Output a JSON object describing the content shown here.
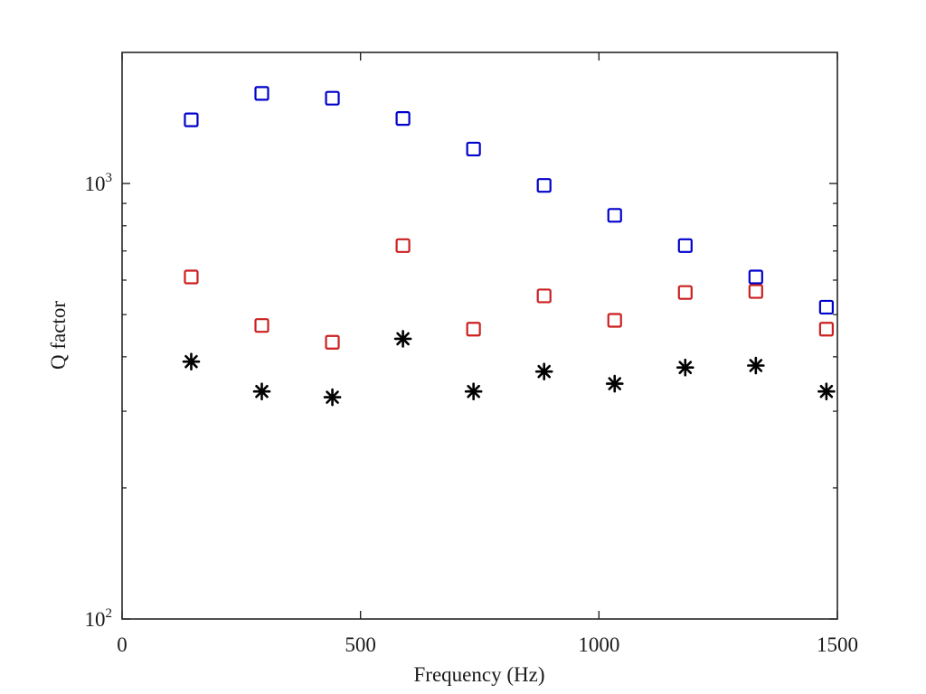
{
  "chart_data": {
    "type": "scatter",
    "title": "",
    "xlabel": "Frequency (Hz)",
    "ylabel": "Q factor",
    "xlim": [
      0,
      1500
    ],
    "ylim": [
      100,
      2000
    ],
    "yscale": "log",
    "grid": false,
    "legend": "none",
    "x_ticks": [
      {
        "value": 0,
        "label": "0"
      },
      {
        "value": 500,
        "label": "500"
      },
      {
        "value": 1000,
        "label": "1000"
      },
      {
        "value": 1500,
        "label": "1500"
      }
    ],
    "y_ticks": [
      {
        "value": 100,
        "base": "10",
        "exp": "2"
      },
      {
        "value": 1000,
        "base": "10",
        "exp": "3"
      }
    ],
    "x": [
      145,
      293,
      441,
      589,
      737,
      885,
      1033,
      1181,
      1329,
      1477
    ],
    "series": [
      {
        "marker": "square",
        "color": "#0000cc",
        "values": [
          1400,
          1610,
          1570,
          1410,
          1200,
          990,
          845,
          720,
          610,
          520
        ]
      },
      {
        "marker": "square",
        "color": "#cc1f1f",
        "values": [
          610,
          472,
          432,
          720,
          463,
          552,
          485,
          562,
          565,
          463
        ]
      },
      {
        "marker": "asterisk",
        "color": "#000000",
        "values": [
          390,
          333,
          323,
          440,
          333,
          370,
          347,
          378,
          382,
          333
        ]
      }
    ]
  }
}
